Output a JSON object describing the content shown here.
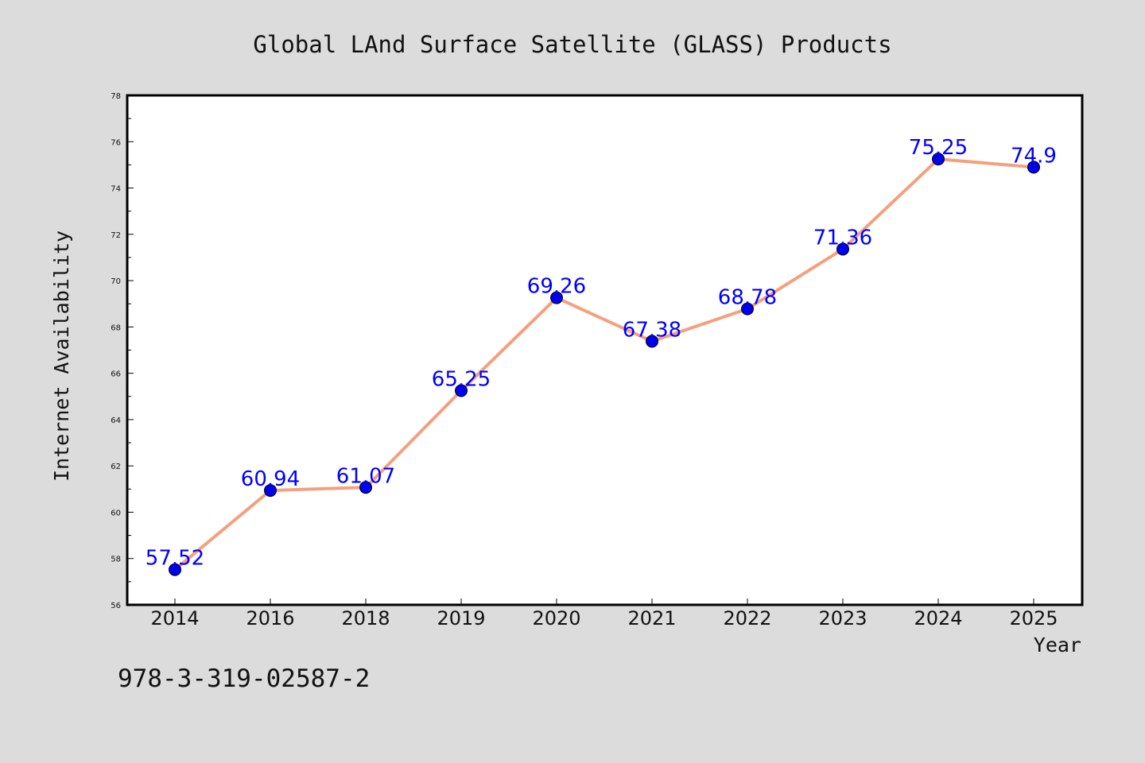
{
  "chart_data": {
    "type": "line",
    "title": "Global LAnd Surface Satellite (GLASS) Products",
    "xlabel": "Year",
    "ylabel": "Internet Availability",
    "categories": [
      "2014",
      "2016",
      "2018",
      "2019",
      "2020",
      "2021",
      "2022",
      "2023",
      "2024",
      "2025"
    ],
    "series": [
      {
        "values": [
          57.52,
          60.94,
          61.07,
          65.25,
          69.26,
          67.38,
          68.78,
          71.36,
          75.25,
          74.9
        ],
        "labels": [
          "57.52",
          "60.94",
          "61.07",
          "65.25",
          "69.26",
          "67.38",
          "68.78",
          "71.36",
          "75.25",
          "74.9"
        ]
      }
    ],
    "ylim": [
      56,
      78
    ],
    "yticks": [
      "56",
      "58",
      "60",
      "62",
      "64",
      "66",
      "68",
      "70",
      "72",
      "74",
      "76",
      "78"
    ],
    "grid": false,
    "colors": {
      "line": "#f4a07e",
      "marker": "#0000ee",
      "label": "#0000ff",
      "background": "#dcdcdc",
      "plot_area": "#ffffff"
    }
  },
  "footnote": "978-3-319-02587-2"
}
